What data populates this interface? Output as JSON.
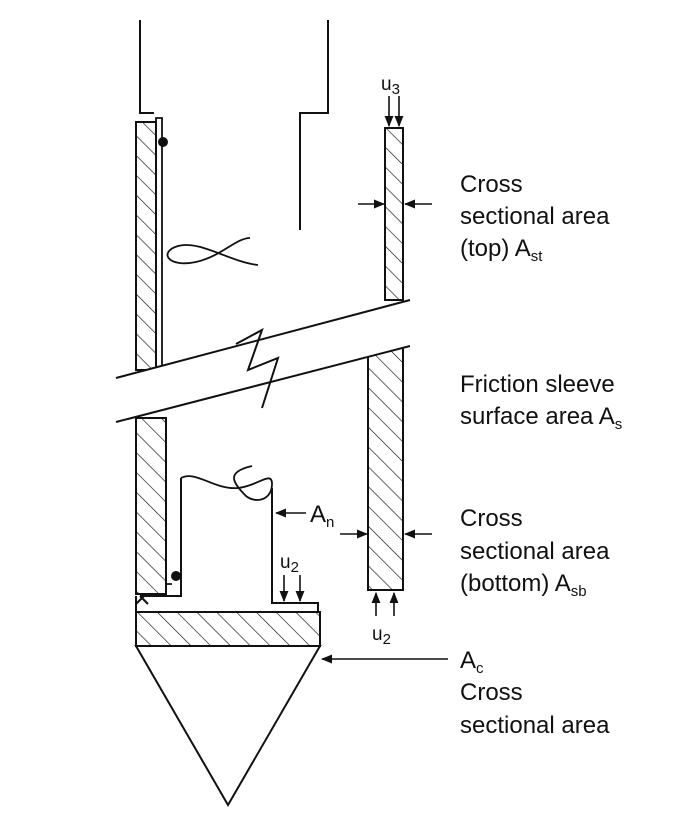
{
  "colors": {
    "ink": "#111111",
    "paper": "#ffffff"
  },
  "labels": {
    "u3": "u",
    "u3_sub": "3",
    "top_area_line1": "Cross",
    "top_area_line2": "sectional area",
    "top_area_line3": "(top) A",
    "top_area_sub": "st",
    "sleeve_line1": "Friction sleeve",
    "sleeve_line2": "surface area A",
    "sleeve_sub": "s",
    "an": "A",
    "an_sub": "n",
    "bottom_area_line1": "Cross",
    "bottom_area_line2": "sectional area",
    "bottom_area_line3": "(bottom) A",
    "bottom_area_sub": "sb",
    "u2_inner": "u",
    "u2_inner_sub": "2",
    "u2_outer": "u",
    "u2_outer_sub": "2",
    "ac": "A",
    "ac_sub": "c",
    "cone_area_line1": "Cross",
    "cone_area_line2": "sectional area"
  }
}
